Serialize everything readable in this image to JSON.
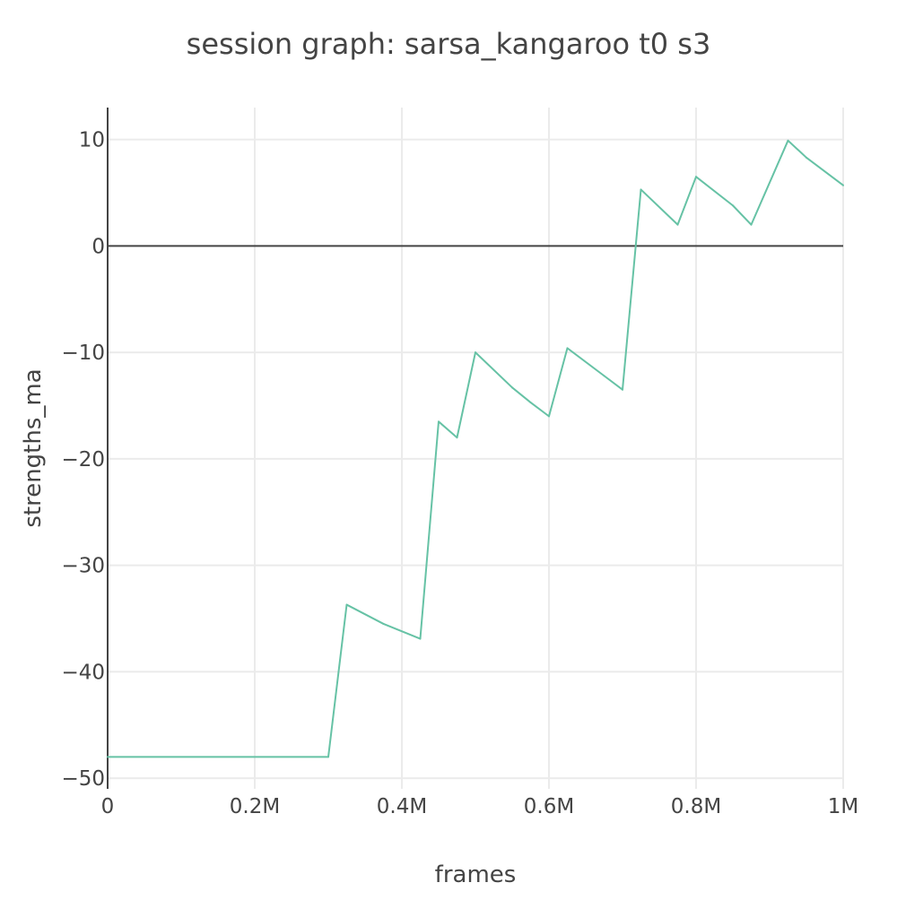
{
  "chart_data": {
    "type": "line",
    "title": "session graph: sarsa_kangaroo t0 s3",
    "xlabel": "frames",
    "ylabel": "strengths_ma",
    "xlim": [
      0,
      1000000
    ],
    "ylim": [
      -51,
      13
    ],
    "x_ticks": [
      {
        "value": 0,
        "label": "0"
      },
      {
        "value": 200000,
        "label": "0.2M"
      },
      {
        "value": 400000,
        "label": "0.4M"
      },
      {
        "value": 600000,
        "label": "0.6M"
      },
      {
        "value": 800000,
        "label": "0.8M"
      },
      {
        "value": 1000000,
        "label": "1M"
      }
    ],
    "y_ticks": [
      {
        "value": 10,
        "label": "10"
      },
      {
        "value": 0,
        "label": "0"
      },
      {
        "value": -10,
        "label": "−10"
      },
      {
        "value": -20,
        "label": "−20"
      },
      {
        "value": -30,
        "label": "−30"
      },
      {
        "value": -40,
        "label": "−40"
      },
      {
        "value": -50,
        "label": "−50"
      }
    ],
    "grid": true,
    "zero_line": true,
    "series": [
      {
        "color": "#66c2a5",
        "x": [
          0,
          300000,
          325000,
          375000,
          425000,
          450000,
          475000,
          500000,
          550000,
          575000,
          600000,
          625000,
          675000,
          700000,
          725000,
          775000,
          800000,
          850000,
          875000,
          925000,
          950000,
          1000000
        ],
        "y": [
          -48,
          -48,
          -33.7,
          -35.5,
          -36.9,
          -16.5,
          -18.0,
          -10.0,
          -13.3,
          -14.7,
          -16.0,
          -9.6,
          -12.2,
          -13.5,
          5.3,
          2.0,
          6.5,
          3.8,
          2.0,
          9.9,
          8.3,
          5.7
        ]
      }
    ]
  }
}
